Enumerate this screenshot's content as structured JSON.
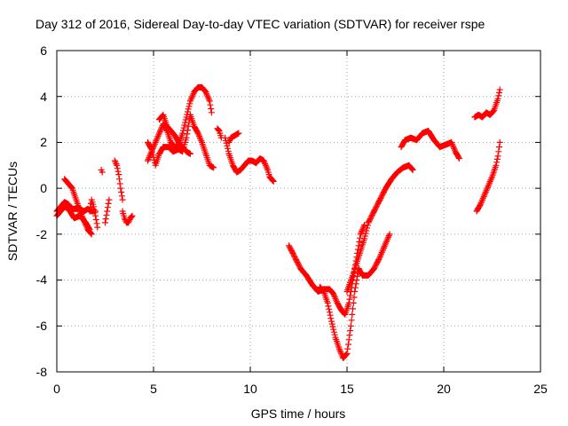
{
  "chart_data": {
    "type": "scatter",
    "title": "Day 312 of 2016, Sidereal Day-to-day VTEC variation (SDTVAR) for receiver rspe",
    "xlabel": "GPS time / hours",
    "ylabel": "SDTVAR / TECUs",
    "xlim": [
      0,
      25
    ],
    "ylim": [
      -8,
      6
    ],
    "xticks": [
      "0",
      "5",
      "10",
      "15",
      "20",
      "25"
    ],
    "yticks": [
      "-8",
      "-6",
      "-4",
      "-2",
      "0",
      "2",
      "4",
      "6"
    ],
    "grid": true,
    "marker": "+",
    "series_color": "#ff0000",
    "tracks": [
      [
        [
          0.0,
          -1.0
        ],
        [
          0.2,
          -0.8
        ],
        [
          0.4,
          -0.6
        ],
        [
          0.6,
          -0.7
        ],
        [
          0.8,
          -0.9
        ],
        [
          1.0,
          -0.9
        ],
        [
          1.2,
          -0.9
        ],
        [
          1.4,
          -1.0
        ],
        [
          1.6,
          -0.9
        ],
        [
          1.8,
          -1.0
        ],
        [
          2.0,
          -1.0
        ]
      ],
      [
        [
          0.4,
          0.4
        ],
        [
          0.6,
          0.2
        ],
        [
          0.8,
          0.0
        ],
        [
          1.0,
          -0.5
        ],
        [
          1.2,
          -1.0
        ],
        [
          1.4,
          -1.4
        ],
        [
          1.6,
          -1.8
        ],
        [
          1.8,
          -2.0
        ]
      ],
      [
        [
          0.0,
          -1.2
        ],
        [
          0.2,
          -1.0
        ],
        [
          0.4,
          -0.8
        ],
        [
          0.6,
          -0.9
        ],
        [
          0.9,
          -1.3
        ],
        [
          1.2,
          -1.2
        ],
        [
          1.5,
          -1.5
        ],
        [
          1.7,
          -1.8
        ]
      ],
      [
        [
          1.7,
          -1.0
        ],
        [
          1.8,
          -0.5
        ],
        [
          1.9,
          -0.8
        ],
        [
          2.0,
          -1.2
        ],
        [
          2.1,
          -1.7
        ]
      ],
      [
        [
          2.3,
          0.8
        ],
        [
          2.35,
          0.7
        ]
      ],
      [
        [
          2.5,
          -1.5
        ],
        [
          2.6,
          -1.0
        ],
        [
          2.7,
          -0.5
        ]
      ],
      [
        [
          3.0,
          1.2
        ],
        [
          3.1,
          1.0
        ],
        [
          3.2,
          0.6
        ],
        [
          3.3,
          0.0
        ],
        [
          3.4,
          -0.5
        ]
      ],
      [
        [
          3.4,
          -1.0
        ],
        [
          3.5,
          -1.3
        ],
        [
          3.6,
          -1.5
        ],
        [
          3.7,
          -1.5
        ],
        [
          3.8,
          -1.3
        ],
        [
          3.9,
          -1.2
        ]
      ],
      [
        [
          4.7,
          1.2
        ],
        [
          4.9,
          1.6
        ],
        [
          5.1,
          2.0
        ],
        [
          5.3,
          2.4
        ],
        [
          5.5,
          2.8
        ],
        [
          5.7,
          2.5
        ],
        [
          5.9,
          2.0
        ],
        [
          6.1,
          1.8
        ],
        [
          6.3,
          1.9
        ],
        [
          6.5,
          2.4
        ],
        [
          6.7,
          3.1
        ],
        [
          6.9,
          3.8
        ],
        [
          7.1,
          4.2
        ],
        [
          7.3,
          4.4
        ],
        [
          7.5,
          4.4
        ],
        [
          7.7,
          4.2
        ],
        [
          7.9,
          3.8
        ],
        [
          8.0,
          3.3
        ]
      ],
      [
        [
          4.7,
          2.0
        ],
        [
          4.9,
          1.7
        ],
        [
          5.1,
          1.0
        ],
        [
          5.3,
          1.5
        ],
        [
          5.5,
          1.8
        ],
        [
          5.8,
          1.8
        ],
        [
          6.0,
          1.6
        ],
        [
          6.3,
          1.7
        ],
        [
          6.5,
          1.6
        ],
        [
          6.7,
          2.2
        ],
        [
          6.9,
          3.2
        ],
        [
          7.1,
          2.7
        ],
        [
          7.3,
          2.4
        ],
        [
          7.5,
          2.0
        ],
        [
          7.7,
          1.5
        ],
        [
          7.9,
          1.0
        ],
        [
          8.1,
          0.9
        ]
      ],
      [
        [
          5.3,
          3.0
        ],
        [
          5.5,
          3.2
        ],
        [
          5.7,
          2.7
        ],
        [
          5.9,
          2.5
        ],
        [
          6.1,
          2.3
        ],
        [
          6.3,
          2.0
        ],
        [
          6.5,
          1.8
        ],
        [
          6.7,
          1.6
        ],
        [
          6.9,
          1.5
        ]
      ],
      [
        [
          8.3,
          2.6
        ],
        [
          8.4,
          2.5
        ],
        [
          8.5,
          2.2
        ]
      ],
      [
        [
          8.7,
          2.2
        ],
        [
          8.9,
          1.5
        ],
        [
          9.1,
          1.0
        ],
        [
          9.3,
          0.7
        ],
        [
          9.5,
          0.8
        ],
        [
          9.7,
          1.0
        ],
        [
          9.9,
          1.2
        ],
        [
          10.1,
          1.2
        ],
        [
          10.3,
          1.1
        ],
        [
          10.5,
          1.3
        ],
        [
          10.7,
          1.2
        ],
        [
          10.9,
          0.8
        ],
        [
          11.0,
          0.5
        ],
        [
          11.2,
          0.3
        ]
      ],
      [
        [
          8.9,
          2.0
        ],
        [
          9.0,
          2.2
        ],
        [
          9.2,
          2.3
        ],
        [
          9.4,
          2.4
        ]
      ],
      [
        [
          12.0,
          -2.5
        ],
        [
          12.3,
          -3.0
        ],
        [
          12.6,
          -3.5
        ],
        [
          12.9,
          -3.8
        ],
        [
          13.2,
          -4.2
        ],
        [
          13.5,
          -4.5
        ],
        [
          13.8,
          -4.4
        ],
        [
          14.1,
          -4.4
        ],
        [
          14.3,
          -4.6
        ],
        [
          14.5,
          -5.0
        ],
        [
          14.7,
          -5.3
        ],
        [
          14.9,
          -5.5
        ],
        [
          15.1,
          -5.0
        ],
        [
          15.3,
          -4.0
        ],
        [
          15.5,
          -3.0
        ],
        [
          15.7,
          -2.0
        ],
        [
          15.9,
          -1.6
        ]
      ],
      [
        [
          13.6,
          -4.3
        ],
        [
          13.8,
          -4.5
        ],
        [
          14.0,
          -5.0
        ],
        [
          14.2,
          -5.8
        ],
        [
          14.4,
          -6.5
        ],
        [
          14.6,
          -7.0
        ],
        [
          14.8,
          -7.4
        ],
        [
          15.0,
          -7.2
        ],
        [
          15.2,
          -6.0
        ],
        [
          15.4,
          -4.5
        ],
        [
          15.6,
          -3.5
        ],
        [
          15.8,
          -3.8
        ],
        [
          16.1,
          -3.8
        ],
        [
          16.4,
          -3.5
        ],
        [
          16.7,
          -3.0
        ],
        [
          17.0,
          -2.4
        ],
        [
          17.2,
          -2.0
        ]
      ],
      [
        [
          15.0,
          -4.5
        ],
        [
          15.3,
          -3.8
        ],
        [
          15.6,
          -3.0
        ],
        [
          15.9,
          -2.2
        ],
        [
          16.1,
          -1.5
        ],
        [
          16.4,
          -1.0
        ],
        [
          16.7,
          -0.5
        ],
        [
          17.0,
          0.0
        ],
        [
          17.3,
          0.4
        ],
        [
          17.6,
          0.7
        ],
        [
          17.9,
          0.9
        ],
        [
          18.2,
          1.0
        ],
        [
          18.4,
          0.8
        ]
      ],
      [
        [
          17.8,
          1.8
        ],
        [
          18.0,
          2.1
        ],
        [
          18.3,
          2.2
        ],
        [
          18.6,
          2.1
        ],
        [
          18.9,
          2.4
        ],
        [
          19.2,
          2.5
        ],
        [
          19.5,
          2.1
        ],
        [
          19.8,
          1.8
        ],
        [
          20.1,
          1.9
        ],
        [
          20.4,
          2.0
        ],
        [
          20.6,
          1.6
        ],
        [
          20.8,
          1.3
        ]
      ],
      [
        [
          21.6,
          3.1
        ],
        [
          21.8,
          3.2
        ],
        [
          22.0,
          3.1
        ],
        [
          22.2,
          3.3
        ],
        [
          22.4,
          3.2
        ],
        [
          22.6,
          3.4
        ],
        [
          22.8,
          3.9
        ],
        [
          22.9,
          4.3
        ]
      ],
      [
        [
          21.7,
          -1.0
        ],
        [
          21.9,
          -0.7
        ],
        [
          22.1,
          -0.3
        ],
        [
          22.3,
          0.1
        ],
        [
          22.5,
          0.5
        ],
        [
          22.7,
          1.0
        ],
        [
          22.8,
          1.4
        ],
        [
          22.9,
          2.0
        ]
      ]
    ]
  }
}
